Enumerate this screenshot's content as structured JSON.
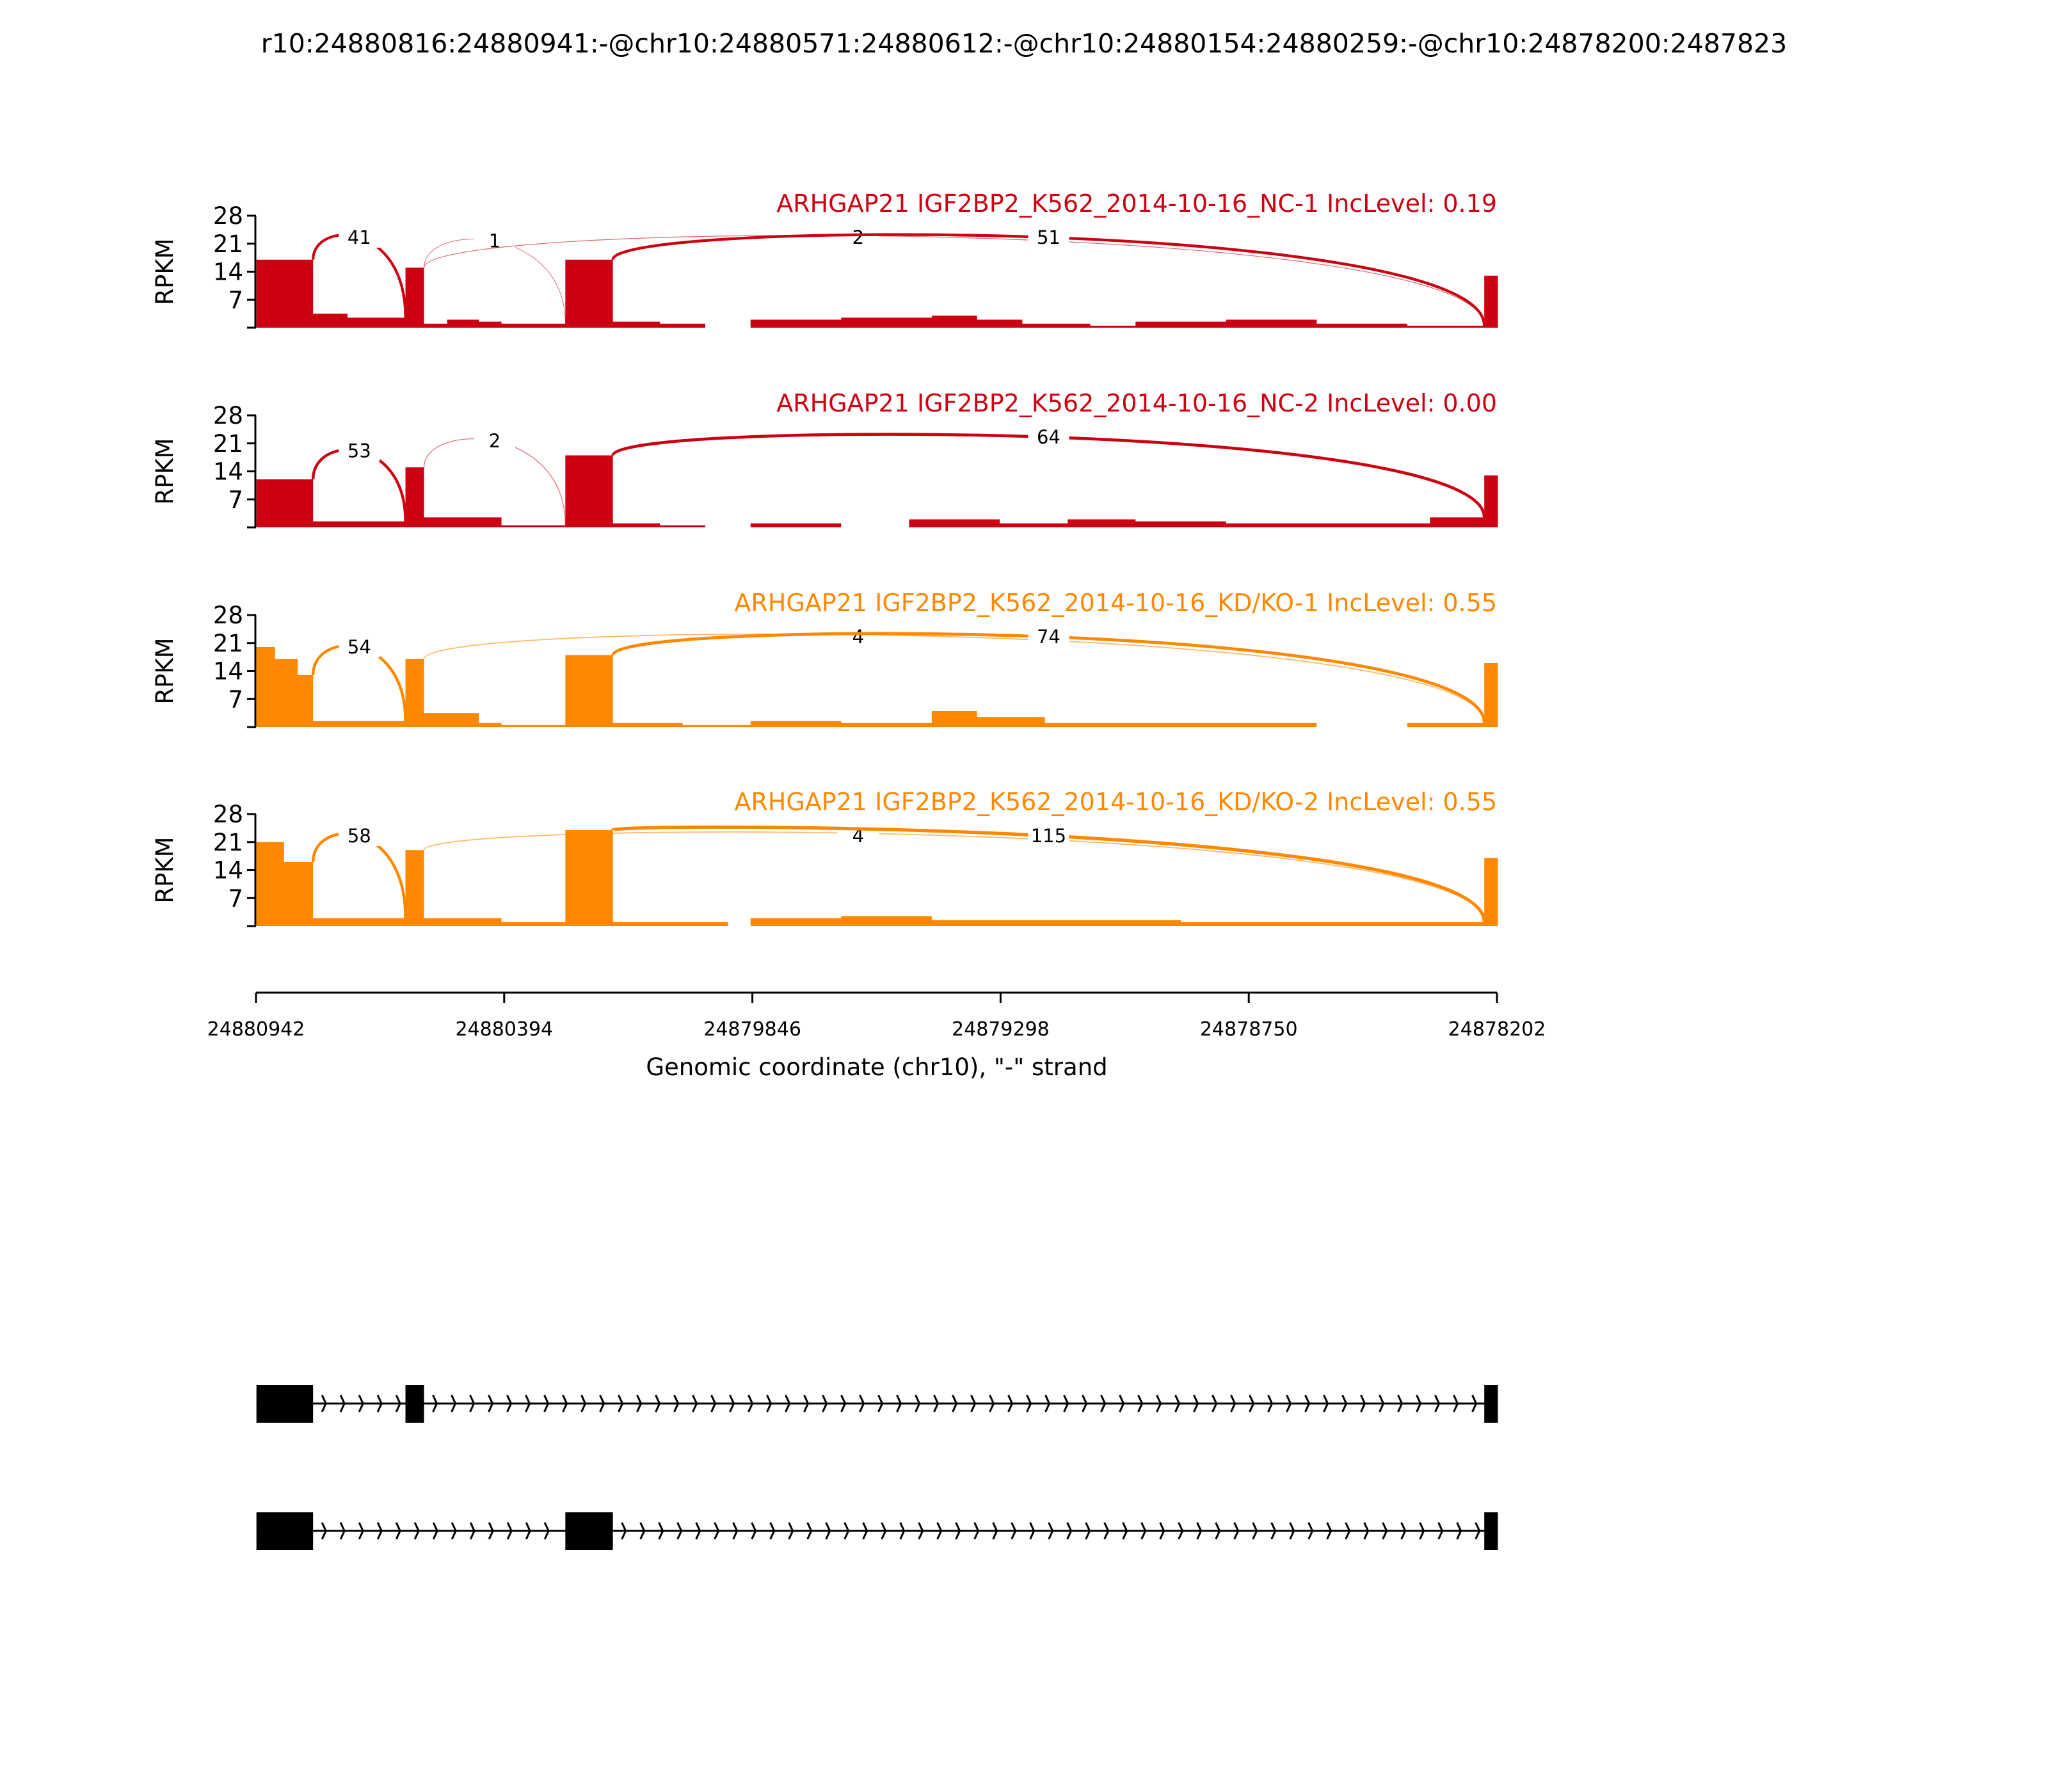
{
  "chart_data": {
    "type": "area",
    "title": "r10:24880816:24880941:-@chr10:24880571:24880612:-@chr10:24880154:24880259:-@chr10:24878200:2487823",
    "xlabel": "Genomic coordinate (chr10), \"-\" strand",
    "ylabel": "RPKM",
    "xlim": [
      24880942,
      24878202
    ],
    "ylim": [
      0,
      28
    ],
    "yticks": [
      7,
      14,
      21,
      28
    ],
    "xticks": [
      "24880942",
      "24880394",
      "24879846",
      "24879298",
      "24878750",
      "24878202"
    ],
    "exons": [
      [
        24880941,
        24880816
      ],
      [
        24880612,
        24880571
      ],
      [
        24880259,
        24880154
      ],
      [
        24878230,
        24878200
      ]
    ],
    "colors": {
      "NC": "#cc0011",
      "KD": "#ff8800"
    },
    "samples": [
      {
        "title": "ARHGAP21 IGF2BP2_K562_2014-10-16_NC-1 IncLevel: 0.19",
        "group": "NC",
        "coverage": [
          [
            24880941,
            24880816,
            17
          ],
          [
            24880816,
            24880740,
            3.5
          ],
          [
            24880740,
            24880612,
            2.5
          ],
          [
            24880612,
            24880571,
            15
          ],
          [
            24880571,
            24880520,
            1
          ],
          [
            24880520,
            24880450,
            2
          ],
          [
            24880450,
            24880400,
            1.5
          ],
          [
            24880400,
            24880259,
            1
          ],
          [
            24880259,
            24880154,
            17
          ],
          [
            24880154,
            24880050,
            1.5
          ],
          [
            24880050,
            24879950,
            1
          ],
          [
            24879950,
            24879850,
            0
          ],
          [
            24879850,
            24879650,
            2
          ],
          [
            24879650,
            24879450,
            2.5
          ],
          [
            24879450,
            24879350,
            3
          ],
          [
            24879350,
            24879250,
            2
          ],
          [
            24879250,
            24879100,
            1
          ],
          [
            24879100,
            24879000,
            0.5
          ],
          [
            24879000,
            24878800,
            1.5
          ],
          [
            24878800,
            24878600,
            2
          ],
          [
            24878600,
            24878400,
            1
          ],
          [
            24878400,
            24878230,
            0.5
          ],
          [
            24878230,
            24878200,
            13
          ]
        ],
        "junctions": [
          {
            "from": 24880816,
            "to": 24880612,
            "count": "41"
          },
          {
            "from": 24880571,
            "to": 24880259,
            "count": "1"
          },
          {
            "from": 24880571,
            "to": 24878230,
            "count": "2"
          },
          {
            "from": 24880154,
            "to": 24878230,
            "count": "51"
          }
        ]
      },
      {
        "title": "ARHGAP21 IGF2BP2_K562_2014-10-16_NC-2 IncLevel: 0.00",
        "group": "NC",
        "coverage": [
          [
            24880941,
            24880816,
            12
          ],
          [
            24880816,
            24880612,
            1.5
          ],
          [
            24880612,
            24880571,
            15
          ],
          [
            24880571,
            24880400,
            2.5
          ],
          [
            24880400,
            24880259,
            0.5
          ],
          [
            24880259,
            24880154,
            18
          ],
          [
            24880154,
            24880050,
            1
          ],
          [
            24880050,
            24879950,
            0.5
          ],
          [
            24879950,
            24879850,
            0
          ],
          [
            24879850,
            24879650,
            1
          ],
          [
            24879650,
            24879500,
            0
          ],
          [
            24879500,
            24879300,
            2
          ],
          [
            24879300,
            24879150,
            1
          ],
          [
            24879150,
            24879000,
            2
          ],
          [
            24879000,
            24878800,
            1.5
          ],
          [
            24878800,
            24878500,
            1
          ],
          [
            24878500,
            24878350,
            1
          ],
          [
            24878350,
            24878230,
            2.5
          ],
          [
            24878230,
            24878200,
            13
          ]
        ],
        "junctions": [
          {
            "from": 24880816,
            "to": 24880612,
            "count": "53"
          },
          {
            "from": 24880571,
            "to": 24880259,
            "count": "2"
          },
          {
            "from": 24880154,
            "to": 24878230,
            "count": "64"
          }
        ]
      },
      {
        "title": "ARHGAP21 IGF2BP2_K562_2014-10-16_KD/KO-1 IncLevel: 0.55",
        "group": "KD",
        "coverage": [
          [
            24880941,
            24880900,
            20
          ],
          [
            24880900,
            24880850,
            17
          ],
          [
            24880850,
            24880816,
            13
          ],
          [
            24880816,
            24880612,
            1.5
          ],
          [
            24880612,
            24880571,
            17
          ],
          [
            24880571,
            24880450,
            3.5
          ],
          [
            24880450,
            24880400,
            1
          ],
          [
            24880400,
            24880259,
            0.5
          ],
          [
            24880259,
            24880154,
            18
          ],
          [
            24880154,
            24880000,
            1
          ],
          [
            24880000,
            24879850,
            0.5
          ],
          [
            24879850,
            24879650,
            1.5
          ],
          [
            24879650,
            24879450,
            1
          ],
          [
            24879450,
            24879350,
            4
          ],
          [
            24879350,
            24879200,
            2.5
          ],
          [
            24879200,
            24879000,
            1
          ],
          [
            24879000,
            24878800,
            1
          ],
          [
            24878800,
            24878600,
            1
          ],
          [
            24878600,
            24878400,
            0
          ],
          [
            24878400,
            24878230,
            1
          ],
          [
            24878230,
            24878200,
            16
          ]
        ],
        "junctions": [
          {
            "from": 24880816,
            "to": 24880612,
            "count": "54"
          },
          {
            "from": 24880571,
            "to": 24878230,
            "count": "4"
          },
          {
            "from": 24880154,
            "to": 24878230,
            "count": "74"
          }
        ]
      },
      {
        "title": "ARHGAP21 IGF2BP2_K562_2014-10-16_KD/KO-2 IncLevel: 0.55",
        "group": "KD",
        "coverage": [
          [
            24880941,
            24880880,
            21
          ],
          [
            24880880,
            24880816,
            16
          ],
          [
            24880816,
            24880612,
            2
          ],
          [
            24880612,
            24880571,
            19
          ],
          [
            24880571,
            24880400,
            2
          ],
          [
            24880400,
            24880259,
            1
          ],
          [
            24880259,
            24880154,
            24
          ],
          [
            24880154,
            24879900,
            1
          ],
          [
            24879900,
            24879850,
            0
          ],
          [
            24879850,
            24879650,
            2
          ],
          [
            24879650,
            24879450,
            2.5
          ],
          [
            24879450,
            24879300,
            1.5
          ],
          [
            24879300,
            24879100,
            1.5
          ],
          [
            24879100,
            24878900,
            1.5
          ],
          [
            24878900,
            24878700,
            1
          ],
          [
            24878700,
            24878400,
            1
          ],
          [
            24878400,
            24878230,
            1
          ],
          [
            24878230,
            24878200,
            17
          ]
        ],
        "junctions": [
          {
            "from": 24880816,
            "to": 24880612,
            "count": "58"
          },
          {
            "from": 24880571,
            "to": 24878230,
            "count": "4"
          },
          {
            "from": 24880154,
            "to": 24878230,
            "count": "115"
          }
        ]
      }
    ],
    "isoforms": [
      {
        "exons": [
          [
            24880941,
            24880816
          ],
          [
            24880612,
            24880571
          ],
          [
            24878230,
            24878200
          ]
        ]
      },
      {
        "exons": [
          [
            24880941,
            24880816
          ],
          [
            24880259,
            24880154
          ],
          [
            24878230,
            24878200
          ]
        ]
      }
    ]
  }
}
